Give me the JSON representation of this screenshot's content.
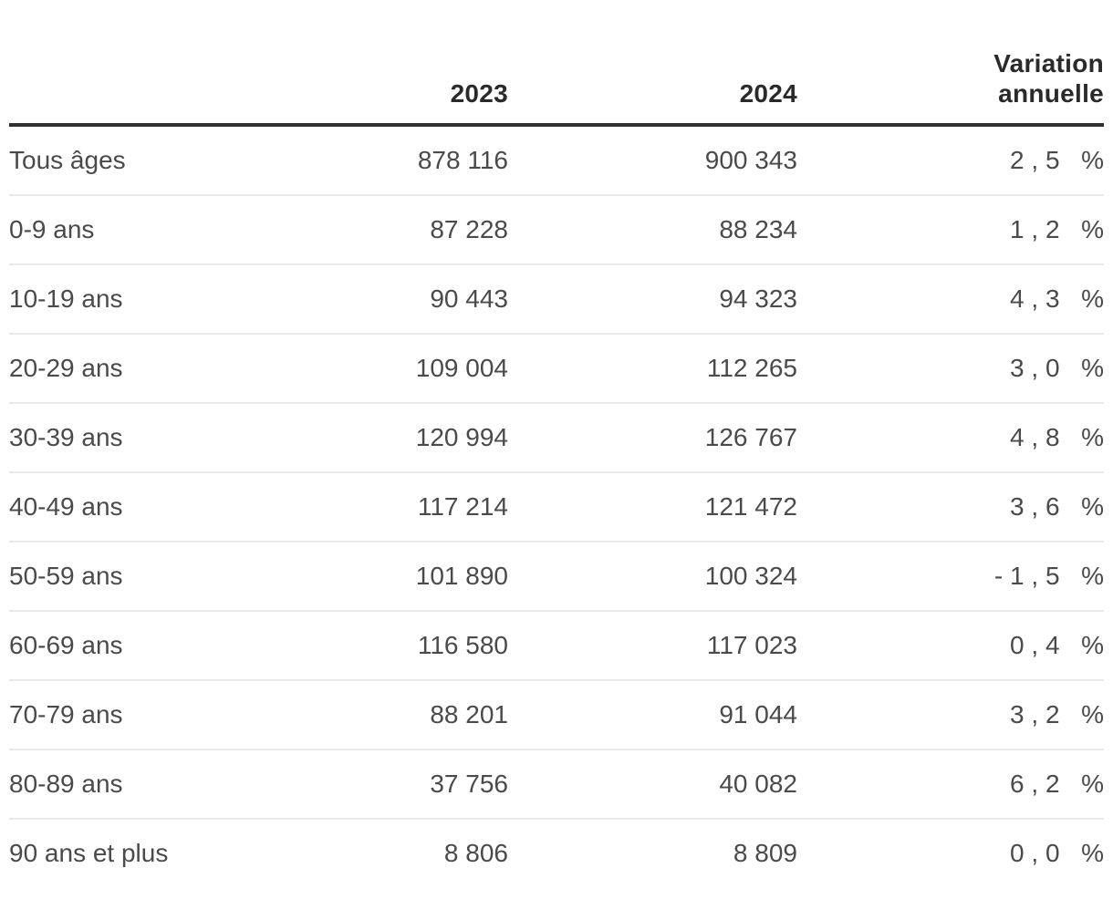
{
  "colors": {
    "header_text": "#2a2a2a",
    "body_text": "#4a4a4a",
    "header_rule": "#2f2f2f",
    "row_separator": "#e9e9e9",
    "background": "#ffffff"
  },
  "table": {
    "header": {
      "label": "",
      "year_2023": "2023",
      "year_2024": "2024",
      "variation_line1": "Variation",
      "variation_line2": "annuelle"
    },
    "rows": [
      {
        "label": "Tous âges",
        "v2023": "878 116",
        "v2024": "900 343",
        "variation": "2,5 %"
      },
      {
        "label": "0-9 ans",
        "v2023": "87 228",
        "v2024": "88 234",
        "variation": "1,2 %"
      },
      {
        "label": "10-19 ans",
        "v2023": "90 443",
        "v2024": "94 323",
        "variation": "4,3 %"
      },
      {
        "label": "20-29 ans",
        "v2023": "109 004",
        "v2024": "112 265",
        "variation": "3,0 %"
      },
      {
        "label": "30-39 ans",
        "v2023": "120 994",
        "v2024": "126 767",
        "variation": "4,8 %"
      },
      {
        "label": "40-49 ans",
        "v2023": "117 214",
        "v2024": "121 472",
        "variation": "3,6 %"
      },
      {
        "label": "50-59 ans",
        "v2023": "101 890",
        "v2024": "100 324",
        "variation": "-1,5 %"
      },
      {
        "label": "60-69 ans",
        "v2023": "116 580",
        "v2024": "117 023",
        "variation": "0,4 %"
      },
      {
        "label": "70-79 ans",
        "v2023": "88 201",
        "v2024": "91 044",
        "variation": "3,2 %"
      },
      {
        "label": "80-89 ans",
        "v2023": "37 756",
        "v2024": "40 082",
        "variation": "6,2 %"
      },
      {
        "label": "90 ans et plus",
        "v2023": "8 806",
        "v2024": "8 809",
        "variation": "0,0 %"
      }
    ]
  },
  "chart_data": {
    "type": "table",
    "columns": [
      "",
      "2023",
      "2024",
      "Variation annuelle"
    ],
    "rows": [
      [
        "Tous âges",
        878116,
        900343,
        "2,5 %"
      ],
      [
        "0-9 ans",
        87228,
        88234,
        "1,2 %"
      ],
      [
        "10-19 ans",
        90443,
        94323,
        "4,3 %"
      ],
      [
        "20-29 ans",
        109004,
        112265,
        "3,0 %"
      ],
      [
        "30-39 ans",
        120994,
        126767,
        "4,8 %"
      ],
      [
        "40-49 ans",
        117214,
        121472,
        "3,6 %"
      ],
      [
        "50-59 ans",
        101890,
        100324,
        "-1,5 %"
      ],
      [
        "60-69 ans",
        116580,
        117023,
        "0,4 %"
      ],
      [
        "70-79 ans",
        88201,
        91044,
        "3,2 %"
      ],
      [
        "80-89 ans",
        37756,
        40082,
        "6,2 %"
      ],
      [
        "90 ans et plus",
        8806,
        8809,
        "0,0 %"
      ]
    ]
  }
}
